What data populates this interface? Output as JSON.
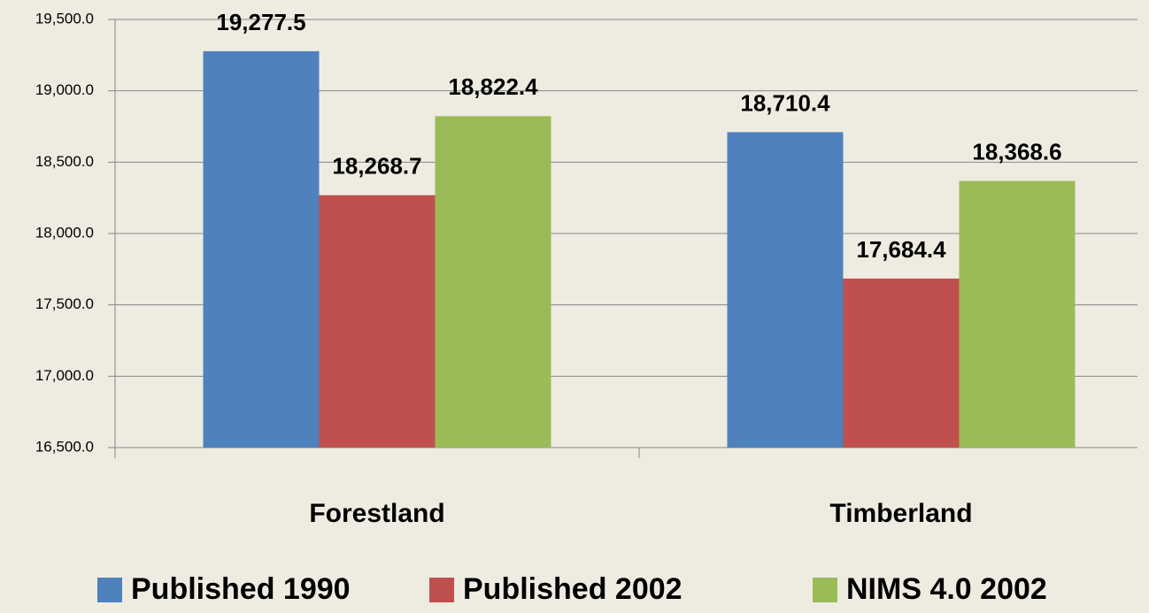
{
  "chart_data": {
    "type": "bar",
    "categories": [
      "Forestland",
      "Timberland"
    ],
    "series": [
      {
        "name": "Published 1990",
        "color": "#4f81bd",
        "values": [
          19277.5,
          18710.4
        ],
        "value_labels": [
          "19,277.5",
          "18,710.4"
        ]
      },
      {
        "name": "Published 2002",
        "color": "#c0504d",
        "values": [
          18268.7,
          17684.4
        ],
        "value_labels": [
          "18,268.7",
          "17,684.4"
        ]
      },
      {
        "name": "NIMS 4.0 2002",
        "color": "#9bbb59",
        "values": [
          18822.4,
          18368.6
        ],
        "value_labels": [
          "18,822.4",
          "18,368.6"
        ]
      }
    ],
    "ylim": [
      16500,
      19500
    ],
    "yticks": [
      {
        "value": 16500,
        "label": "16,500.0"
      },
      {
        "value": 17000,
        "label": "17,000.0"
      },
      {
        "value": 17500,
        "label": "17,500.0"
      },
      {
        "value": 18000,
        "label": "18,000.0"
      },
      {
        "value": 18500,
        "label": "18,500.0"
      },
      {
        "value": 19000,
        "label": "19,000.0"
      },
      {
        "value": 19500,
        "label": "19,500.0"
      }
    ],
    "grid": true,
    "legend": "bottom"
  }
}
